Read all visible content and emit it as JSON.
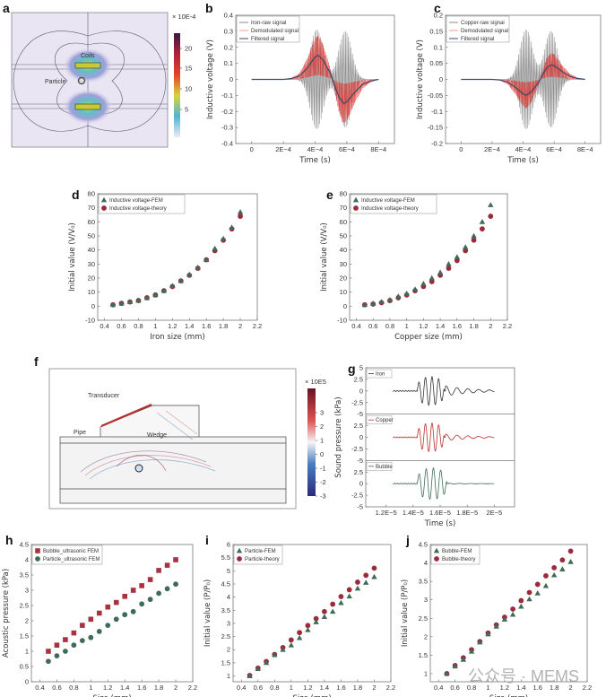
{
  "panels": {
    "a": {
      "letter": "a",
      "colorbar_title": "× 10E-4",
      "colorbar_ticks": [
        "20",
        "15",
        "10",
        "5"
      ],
      "labels": {
        "coils": "Coils",
        "particle": "Particle"
      }
    },
    "f": {
      "letter": "f",
      "colorbar_title": "× 10E5",
      "colorbar_ticks": [
        "3",
        "2",
        "1",
        "0",
        "-1",
        "-2",
        "-3"
      ],
      "labels": {
        "transducer": "Transducer",
        "wedge": "Wedge",
        "pipe": "Pipe"
      }
    },
    "g": {
      "letter": "g"
    }
  },
  "watermark": "公众号 · MEMS",
  "colors": {
    "gray_raw": "#8a8a8a",
    "red": "#e0332e",
    "navy": "#3b4a6b",
    "fem_green": "#3f6b58",
    "theory_red": "#9b2b3a",
    "square_red": "#a8323e"
  },
  "chart_data": [
    {
      "id": "b",
      "letter": "b",
      "type": "line",
      "xlabel": "Time (s)",
      "ylabel": "Inductive voltage (V)",
      "xlim": [
        -0.0001,
        0.0009
      ],
      "ylim": [
        -0.4,
        0.4
      ],
      "xticks": [
        0,
        0.0002,
        0.0004,
        0.0006,
        0.0008
      ],
      "xtick_labels": [
        "0",
        "2E−4",
        "4E−4",
        "6E−4",
        "8E−4"
      ],
      "yticks": [
        0.4,
        0.3,
        0.2,
        0.1,
        0,
        -0.1,
        -0.2,
        -0.3,
        -0.4
      ],
      "ytick_labels": [
        "0.4",
        "0.3",
        "0.2",
        "0.1",
        "0",
        "-0.1",
        "-0.2",
        "-0.3",
        "-0.4"
      ],
      "legend": [
        "Iron-raw signal",
        "Demodulated signal",
        "Filtered signal"
      ],
      "raw_envelope_peaks": [
        {
          "t": 0.00041,
          "amp": 0.31
        },
        {
          "t": 0.00059,
          "amp": 0.3
        }
      ],
      "filtered": {
        "x": [
          0,
          0.0001,
          0.0002,
          0.00025,
          0.0003,
          0.00035,
          0.0004,
          0.00042,
          0.00045,
          0.0005,
          0.00052,
          0.00055,
          0.00058,
          0.0006,
          0.00065,
          0.0007,
          0.00075,
          0.0008
        ],
        "y": [
          0,
          0,
          0,
          0.005,
          0.02,
          0.07,
          0.14,
          0.15,
          0.12,
          0.03,
          -0.03,
          -0.11,
          -0.15,
          -0.14,
          -0.08,
          -0.03,
          -0.01,
          0
        ]
      }
    },
    {
      "id": "c",
      "letter": "c",
      "type": "line",
      "xlabel": "Time (s)",
      "ylabel": "Inductive voltage (V)",
      "xlim": [
        -0.0001,
        0.0009
      ],
      "ylim": [
        -0.2,
        0.2
      ],
      "xticks": [
        0,
        0.0002,
        0.0004,
        0.0006,
        0.0008
      ],
      "xtick_labels": [
        "0",
        "2E−4",
        "4E−4",
        "6E−4",
        "8E−4"
      ],
      "yticks": [
        0.2,
        0.15,
        0.1,
        0.05,
        0,
        -0.05,
        -0.1,
        -0.15,
        -0.2
      ],
      "ytick_labels": [
        "0.2",
        "0.15",
        "0.1",
        "0.05",
        "0",
        "-0.05",
        "-0.1",
        "-0.15",
        "-0.2"
      ],
      "legend": [
        "Copper-raw signal",
        "Demodulated signal",
        "Filtered signal"
      ],
      "raw_envelope_peaks": [
        {
          "t": 0.00042,
          "amp": 0.155
        },
        {
          "t": 0.00058,
          "amp": 0.15
        }
      ],
      "filtered": {
        "x": [
          0,
          0.0001,
          0.0002,
          0.00025,
          0.0003,
          0.00035,
          0.0004,
          0.00042,
          0.00045,
          0.0005,
          0.00052,
          0.00055,
          0.00058,
          0.0006,
          0.00065,
          0.0007,
          0.00075,
          0.0008
        ],
        "y": [
          0,
          0,
          0,
          -0.002,
          -0.008,
          -0.025,
          -0.045,
          -0.05,
          -0.04,
          -0.01,
          0.01,
          0.035,
          0.045,
          0.043,
          0.025,
          0.01,
          0.003,
          0
        ]
      }
    },
    {
      "id": "d",
      "letter": "d",
      "type": "scatter",
      "xlabel": "Iron size (mm)",
      "ylabel": "Initial value (V/V₀)",
      "xlim": [
        0.32,
        2.2
      ],
      "ylim": [
        -10,
        80
      ],
      "xticks": [
        0.4,
        0.6,
        0.8,
        1,
        1.2,
        1.4,
        1.6,
        1.8,
        2,
        2.2
      ],
      "xtick_labels": [
        "0.4",
        "0.6",
        "0.8",
        "1",
        "1.2",
        "1.4",
        "1.6",
        "1.8",
        "2",
        "2.2"
      ],
      "yticks": [
        80,
        70,
        60,
        50,
        40,
        30,
        20,
        10,
        0,
        -10
      ],
      "ytick_labels": [
        "80",
        "70",
        "60",
        "50",
        "40",
        "30",
        "20",
        "10",
        "0",
        "-10"
      ],
      "x": [
        0.5,
        0.6,
        0.7,
        0.8,
        0.9,
        1.0,
        1.1,
        1.2,
        1.3,
        1.4,
        1.5,
        1.6,
        1.7,
        1.8,
        1.9,
        2.0
      ],
      "series": [
        {
          "name": "Inductive voltage-FEM",
          "marker": "triangle",
          "values": [
            1,
            2,
            3,
            4,
            6,
            8,
            11,
            14.5,
            18,
            22.5,
            27.5,
            33,
            41,
            48,
            56,
            67
          ]
        },
        {
          "name": "Inductive voltage-theory",
          "marker": "circle",
          "values": [
            1,
            2,
            3,
            4,
            6,
            8,
            11,
            14,
            18,
            22,
            27,
            33,
            39.5,
            47,
            55,
            64
          ]
        }
      ]
    },
    {
      "id": "e",
      "letter": "e",
      "type": "scatter",
      "xlabel": "Copper size (mm)",
      "ylabel": "Initial value (V/V₀)",
      "xlim": [
        0.32,
        2.2
      ],
      "ylim": [
        -10,
        80
      ],
      "xticks": [
        0.4,
        0.6,
        0.8,
        1,
        1.2,
        1.4,
        1.6,
        1.8,
        2,
        2.2
      ],
      "xtick_labels": [
        "0.4",
        "0.6",
        "0.8",
        "1",
        "1.2",
        "1.4",
        "1.6",
        "1.8",
        "2",
        "2.2"
      ],
      "yticks": [
        80,
        70,
        60,
        50,
        40,
        30,
        20,
        10,
        0,
        -10
      ],
      "ytick_labels": [
        "80",
        "70",
        "60",
        "50",
        "40",
        "30",
        "20",
        "10",
        "0",
        "-10"
      ],
      "x": [
        0.5,
        0.6,
        0.7,
        0.8,
        0.9,
        1.0,
        1.1,
        1.2,
        1.3,
        1.4,
        1.5,
        1.6,
        1.7,
        1.8,
        1.9,
        2.0
      ],
      "series": [
        {
          "name": "Inductive voltage-FEM",
          "marker": "triangle",
          "values": [
            1,
            2,
            3,
            4.5,
            7,
            9,
            12,
            16,
            20,
            24,
            30,
            35,
            42,
            50,
            60,
            72
          ]
        },
        {
          "name": "Inductive voltage-theory",
          "marker": "circle",
          "values": [
            1,
            1.5,
            2.5,
            4,
            6,
            8,
            11,
            14,
            17.5,
            22,
            27,
            32.5,
            39.5,
            47,
            55,
            64
          ]
        }
      ]
    },
    {
      "id": "g",
      "letter": "g",
      "type": "line",
      "xlabel": "Time (s)",
      "ylabel": "Sound pressure (kPa)",
      "xlim": [
        1.05e-05,
        2.15e-05
      ],
      "ylim": [
        -5,
        5
      ],
      "xticks": [
        1.2e-05,
        1.4e-05,
        1.6e-05,
        1.8e-05,
        2e-05
      ],
      "xtick_labels": [
        "1.2E−5",
        "1.4E−5",
        "1.6E−5",
        "1.8E−5",
        "2E−5"
      ],
      "yticks": [
        5,
        2.5,
        0,
        -2.5,
        -5
      ],
      "ytick_labels": [
        "5",
        "2.5",
        "0",
        "-2.5",
        "-5"
      ],
      "series": [
        {
          "name": "Iron",
          "color": "#333333",
          "start": 1.25e-05,
          "burst_start": 1.43e-05,
          "burst_end": 1.64e-05,
          "burst_amplitude": 3.1,
          "tail_amplitude": 1.1,
          "end": 2e-05
        },
        {
          "name": "Copper",
          "color": "#b8302e",
          "start": 1.25e-05,
          "burst_start": 1.43e-05,
          "burst_end": 1.64e-05,
          "burst_amplitude": 3.1,
          "tail_amplitude": 0.7,
          "end": 2e-05
        },
        {
          "name": "Bubble",
          "color": "#3f6b58",
          "start": 1.25e-05,
          "burst_start": 1.43e-05,
          "burst_end": 1.66e-05,
          "burst_amplitude": 3.4,
          "tail_amplitude": 0.1,
          "end": 2e-05
        }
      ]
    },
    {
      "id": "h",
      "letter": "h",
      "type": "scatter",
      "xlabel": "Size (mm)",
      "ylabel": "Acoustic pressure (kPa)",
      "xlim": [
        0.3,
        2.2
      ],
      "ylim": [
        0,
        4.5
      ],
      "xticks": [
        0.4,
        0.6,
        0.8,
        1,
        1.2,
        1.4,
        1.6,
        1.8,
        2,
        2.2
      ],
      "xtick_labels": [
        "0.4",
        "0.6",
        "0.8",
        "1",
        "1.2",
        "1.4",
        "1.6",
        "1.8",
        "2",
        "2.2"
      ],
      "yticks": [
        4.5,
        4,
        3.5,
        3,
        2.5,
        2,
        1.5,
        1,
        0.5,
        0
      ],
      "ytick_labels": [
        "4.5",
        "4",
        "3.5",
        "3",
        "2.5",
        "2",
        "1.5",
        "1",
        "0.5",
        "0"
      ],
      "x": [
        0.5,
        0.6,
        0.7,
        0.8,
        0.9,
        1.0,
        1.1,
        1.2,
        1.3,
        1.4,
        1.5,
        1.6,
        1.7,
        1.8,
        1.9,
        2.0
      ],
      "series": [
        {
          "name": "Bubble_ultrasonic FEM",
          "marker": "square",
          "values": [
            1,
            1.2,
            1.38,
            1.6,
            1.85,
            2.05,
            2.25,
            2.45,
            2.6,
            2.8,
            3.0,
            3.15,
            3.35,
            3.65,
            3.82,
            4.0
          ]
        },
        {
          "name": "Particle_ultrasonic FEM",
          "marker": "circle-green",
          "values": [
            0.67,
            0.85,
            1.0,
            1.2,
            1.35,
            1.45,
            1.65,
            1.85,
            2.05,
            2.2,
            2.3,
            2.55,
            2.7,
            2.9,
            3.05,
            3.2
          ]
        }
      ]
    },
    {
      "id": "i",
      "letter": "i",
      "type": "scatter",
      "xlabel": "Size (mm)",
      "ylabel": "Initial value (P/P₀)",
      "xlim": [
        0.3,
        2.2
      ],
      "ylim": [
        0.78,
        6
      ],
      "xticks": [
        0.4,
        0.6,
        0.8,
        1,
        1.2,
        1.4,
        1.6,
        1.8,
        2,
        2.2
      ],
      "xtick_labels": [
        "0.4",
        "0.6",
        "0.8",
        "1",
        "1.2",
        "1.4",
        "1.6",
        "1.8",
        "2",
        "2.2"
      ],
      "yticks": [
        6,
        5.5,
        5,
        4.5,
        4,
        3.5,
        3,
        2.5,
        2,
        1.5,
        1
      ],
      "ytick_labels": [
        "6",
        "5.5",
        "5",
        "4.5",
        "4",
        "3.5",
        "3",
        "2.5",
        "2",
        "1.5",
        "1"
      ],
      "x": [
        0.5,
        0.6,
        0.7,
        0.8,
        0.9,
        1.0,
        1.1,
        1.2,
        1.3,
        1.4,
        1.5,
        1.6,
        1.7,
        1.8,
        1.9,
        2.0
      ],
      "series": [
        {
          "name": "Particle-FEM",
          "marker": "triangle",
          "values": [
            1,
            1.27,
            1.5,
            1.8,
            2.0,
            2.17,
            2.45,
            2.75,
            3.05,
            3.25,
            3.45,
            3.78,
            4.03,
            4.33,
            4.55,
            4.77
          ]
        },
        {
          "name": "Particle-theory",
          "marker": "circle",
          "values": [
            1.02,
            1.3,
            1.55,
            1.82,
            2.08,
            2.37,
            2.65,
            2.92,
            3.18,
            3.45,
            3.73,
            4.02,
            4.28,
            4.57,
            4.83,
            5.1
          ]
        }
      ]
    },
    {
      "id": "j",
      "letter": "j",
      "type": "scatter",
      "xlabel": "Size (mm)",
      "ylabel": "Initial value (P/P₀)",
      "xlim": [
        0.3,
        2.2
      ],
      "ylim": [
        0.78,
        4.5
      ],
      "xticks": [
        0.4,
        0.6,
        0.8,
        1,
        1.2,
        1.4,
        1.6,
        1.8,
        2,
        2.2
      ],
      "xtick_labels": [
        "0.4",
        "0.6",
        "0.8",
        "1",
        "1.2",
        "1.4",
        "1.6",
        "1.8",
        "2",
        "2.2"
      ],
      "yticks": [
        4.5,
        4,
        3.5,
        3,
        2.5,
        2,
        1.5,
        1
      ],
      "ytick_labels": [
        "4.5",
        "4",
        "3.5",
        "3",
        "2.5",
        "2",
        "1.5",
        "1"
      ],
      "x": [
        0.5,
        0.6,
        0.7,
        0.8,
        0.9,
        1.0,
        1.1,
        1.2,
        1.3,
        1.4,
        1.5,
        1.6,
        1.7,
        1.8,
        1.9,
        2.0
      ],
      "series": [
        {
          "name": "Bubble-FEM",
          "marker": "triangle",
          "values": [
            1,
            1.2,
            1.38,
            1.6,
            1.85,
            2.07,
            2.28,
            2.47,
            2.6,
            2.82,
            3.02,
            3.18,
            3.38,
            3.67,
            3.83,
            4.03
          ]
        },
        {
          "name": "Bubble-theory",
          "marker": "circle",
          "values": [
            1,
            1.22,
            1.43,
            1.65,
            1.87,
            2.1,
            2.32,
            2.53,
            2.75,
            2.98,
            3.2,
            3.42,
            3.65,
            3.87,
            4.08,
            4.32
          ]
        }
      ]
    }
  ]
}
